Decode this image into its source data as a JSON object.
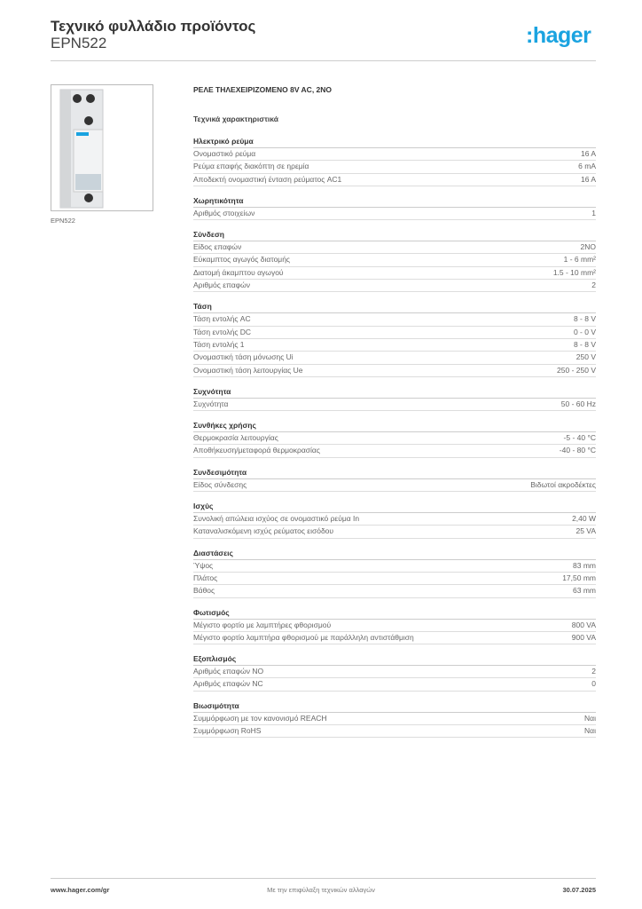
{
  "header": {
    "title": "Τεχνικό φυλλάδιο προϊόντος",
    "code": "EPN522",
    "logo": ":hager"
  },
  "image": {
    "caption": "EPN522"
  },
  "main": {
    "product_title": "ΡΕΛΕ ΤΗΛΕΧΕΙΡΙΖΟΜΕΝΟ 8V AC, 2NO",
    "subhead": "Τεχνικά χαρακτηριστικά",
    "sections": [
      {
        "title": "Ηλεκτρικό ρεύμα",
        "rows": [
          [
            "Ονομαστικό ρεύμα",
            "16 A"
          ],
          [
            "Ρεύμα επαφής διακόπτη σε ηρεμία",
            "6 mA"
          ],
          [
            "Αποδεκτή ονομαστική ένταση ρεύματος AC1",
            "16 A"
          ]
        ]
      },
      {
        "title": "Χωρητικότητα",
        "rows": [
          [
            "Αριθμός στοιχείων",
            "1"
          ]
        ]
      },
      {
        "title": "Σύνδεση",
        "rows": [
          [
            "Είδος επαφών",
            "2NO"
          ],
          [
            "Εύκαμπτος αγωγός διατομής",
            "1 - 6 mm²"
          ],
          [
            "Διατομή άκαμπτου αγωγού",
            "1.5 - 10 mm²"
          ],
          [
            "Αριθμός επαφών",
            "2"
          ]
        ]
      },
      {
        "title": "Τάση",
        "rows": [
          [
            "Τάση εντολής AC",
            "8 - 8 V"
          ],
          [
            "Τάση εντολής DC",
            "0 - 0 V"
          ],
          [
            "Τάση εντολής 1",
            "8 - 8 V"
          ],
          [
            "Ονομαστική τάση μόνωσης Ui",
            "250 V"
          ],
          [
            "Ονομαστική τάση λειτουργίας Ue",
            "250 - 250 V"
          ]
        ]
      },
      {
        "title": "Συχνότητα",
        "rows": [
          [
            "Συχνότητα",
            "50 - 60 Hz"
          ]
        ]
      },
      {
        "title": "Συνθήκες χρήσης",
        "rows": [
          [
            "Θερμοκρασία λειτουργίας",
            "-5 - 40 °C"
          ],
          [
            "Αποθήκευση/μεταφορά θερμοκρασίας",
            "-40 - 80 °C"
          ]
        ]
      },
      {
        "title": "Συνδεσιμότητα",
        "rows": [
          [
            "Είδος σύνδεσης",
            "Βιδωτοί ακροδέκτες"
          ]
        ]
      },
      {
        "title": "Ισχύς",
        "rows": [
          [
            "Συνολική απώλεια ισχύος σε ονομαστικό ρεύμα In",
            "2,40 W"
          ],
          [
            "Καταναλισκόμενη ισχύς ρεύματος εισόδου",
            "25 VA"
          ]
        ]
      },
      {
        "title": "Διαστάσεις",
        "rows": [
          [
            "Ύψος",
            "83 mm"
          ],
          [
            "Πλάτος",
            "17,50 mm"
          ],
          [
            "Βάθος",
            "63 mm"
          ]
        ]
      },
      {
        "title": "Φωτισμός",
        "rows": [
          [
            "Μέγιστο φορτίο με λαμπτήρες φθορισμού",
            "800 VA"
          ],
          [
            "Μέγιστο φορτίο λαμπτήρα φθορισμού με παράλληλη αντιστάθμιση",
            "900 VA"
          ]
        ]
      },
      {
        "title": "Εξοπλισμός",
        "rows": [
          [
            "Αριθμός επαφών NO",
            "2"
          ],
          [
            "Αριθμός επαφών NC",
            "0"
          ]
        ]
      },
      {
        "title": "Βιωσιμότητα",
        "rows": [
          [
            "Συμμόρφωση με τον κανονισμό REACH",
            "Ναι"
          ],
          [
            "Συμμόρφωση RoHS",
            "Ναι"
          ]
        ]
      }
    ]
  },
  "footer": {
    "url": "www.hager.com/gr",
    "note": "Με την επιφύλαξη τεχνικών αλλαγών",
    "date": "30.07.2025"
  },
  "colors": {
    "brand": "#1aa3e0"
  }
}
